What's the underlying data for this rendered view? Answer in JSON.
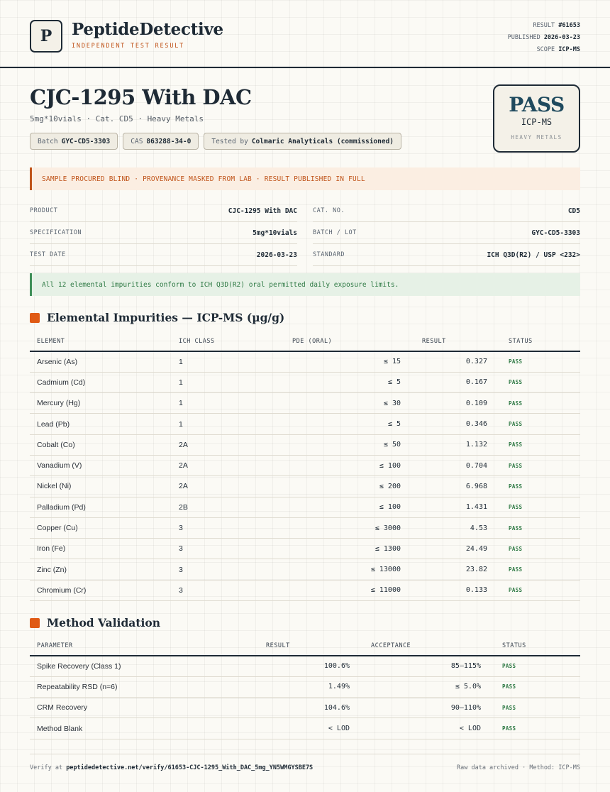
{
  "brand": {
    "logo_letter": "P",
    "name": "PeptideDetective",
    "tagline": "INDEPENDENT TEST RESULT"
  },
  "meta": {
    "result_label": "RESULT",
    "result_value": "#61653",
    "published_label": "PUBLISHED",
    "published_value": "2026-03-23",
    "scope_label": "SCOPE",
    "scope_value": "ICP-MS"
  },
  "product": {
    "title": "CJC-1295 With DAC",
    "subtitle": "5mg*10vials · Cat. CD5 · Heavy Metals",
    "chips": [
      {
        "label": "Batch",
        "value": "GYC-CD5-3303"
      },
      {
        "label": "CAS",
        "value": "863288-34-0"
      },
      {
        "label": "Tested by",
        "value": "Colmaric Analyticals (commissioned)"
      }
    ]
  },
  "verdict": {
    "word": "PASS",
    "method": "ICP-MS",
    "scope": "HEAVY METALS"
  },
  "notice": "SAMPLE PROCURED BLIND · PROVENANCE MASKED FROM LAB · RESULT PUBLISHED IN FULL",
  "spec_left": [
    {
      "label": "PRODUCT",
      "value": "CJC-1295 With DAC"
    },
    {
      "label": "SPECIFICATION",
      "value": "5mg*10vials"
    },
    {
      "label": "TEST DATE",
      "value": "2026-03-23"
    }
  ],
  "spec_right": [
    {
      "label": "CAT. NO.",
      "value": "CD5"
    },
    {
      "label": "BATCH / LOT",
      "value": "GYC-CD5-3303"
    },
    {
      "label": "STANDARD",
      "value": "ICH Q3D(R2) / USP <232>"
    }
  ],
  "conformance": "All 12 elemental impurities conform to ICH Q3D(R2) oral permitted daily exposure limits.",
  "impurities": {
    "title": "Elemental Impurities — ICP-MS (µg/g)",
    "headers": [
      "ELEMENT",
      "ICH CLASS",
      "PDE (ORAL)",
      "RESULT",
      "STATUS"
    ],
    "rows": [
      [
        "Arsenic (As)",
        "1",
        "≤ 15",
        "0.327",
        "PASS"
      ],
      [
        "Cadmium (Cd)",
        "1",
        "≤ 5",
        "0.167",
        "PASS"
      ],
      [
        "Mercury (Hg)",
        "1",
        "≤ 30",
        "0.109",
        "PASS"
      ],
      [
        "Lead (Pb)",
        "1",
        "≤ 5",
        "0.346",
        "PASS"
      ],
      [
        "Cobalt (Co)",
        "2A",
        "≤ 50",
        "1.132",
        "PASS"
      ],
      [
        "Vanadium (V)",
        "2A",
        "≤ 100",
        "0.704",
        "PASS"
      ],
      [
        "Nickel (Ni)",
        "2A",
        "≤ 200",
        "6.968",
        "PASS"
      ],
      [
        "Palladium (Pd)",
        "2B",
        "≤ 100",
        "1.431",
        "PASS"
      ],
      [
        "Copper (Cu)",
        "3",
        "≤ 3000",
        "4.53",
        "PASS"
      ],
      [
        "Iron (Fe)",
        "3",
        "≤ 1300",
        "24.49",
        "PASS"
      ],
      [
        "Zinc (Zn)",
        "3",
        "≤ 13000",
        "23.82",
        "PASS"
      ],
      [
        "Chromium (Cr)",
        "3",
        "≤ 11000",
        "0.133",
        "PASS"
      ]
    ]
  },
  "validation": {
    "title": "Method Validation",
    "headers": [
      "PARAMETER",
      "RESULT",
      "ACCEPTANCE",
      "STATUS"
    ],
    "rows": [
      [
        "Spike Recovery (Class 1)",
        "100.6%",
        "85–115%",
        "PASS"
      ],
      [
        "Repeatability RSD (n=6)",
        "1.49%",
        "≤ 5.0%",
        "PASS"
      ],
      [
        "CRM Recovery",
        "104.6%",
        "90–110%",
        "PASS"
      ],
      [
        "Method Blank",
        "< LOD",
        "< LOD",
        "PASS"
      ]
    ]
  },
  "footer": {
    "verify_label": "Verify at",
    "verify_url": "peptidedetective.net/verify/61653-CJC-1295_With_DAC_5mg_YN5WMGYSBE7S",
    "right_text": "Raw data archived · Method: ICP-MS"
  },
  "colors": {
    "accent": "#e05a14",
    "notice": "#c0541a",
    "pass_green": "#2f7a45",
    "ink": "#1e2a35",
    "verdict_teal": "#1f4a5e"
  }
}
